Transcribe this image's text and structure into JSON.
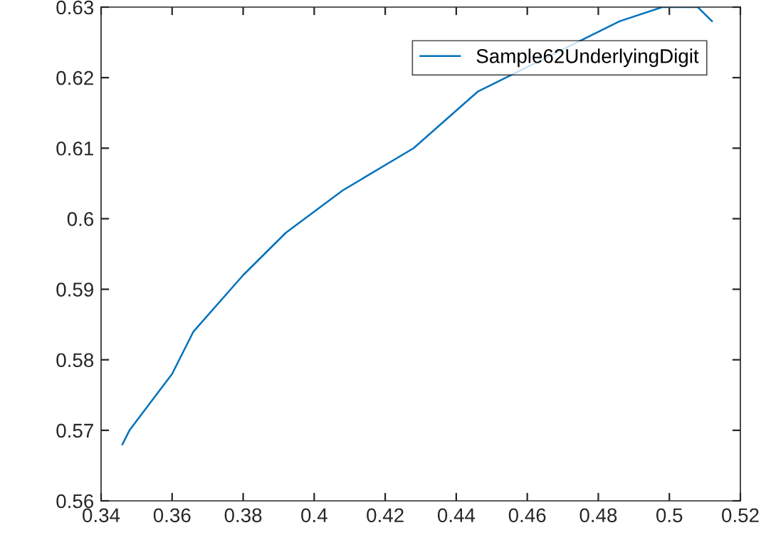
{
  "chart_data": {
    "type": "line",
    "x": [
      0.346,
      0.348,
      0.36,
      0.366,
      0.38,
      0.392,
      0.408,
      0.428,
      0.446,
      0.486,
      0.498,
      0.508,
      0.512
    ],
    "series": [
      {
        "name": "Sample62UnderlyingDigit",
        "color": "#0072bd",
        "values": [
          0.568,
          0.57,
          0.578,
          0.584,
          0.592,
          0.598,
          0.604,
          0.61,
          0.618,
          0.628,
          0.63,
          0.63,
          0.628
        ]
      }
    ],
    "xlim": [
      0.34,
      0.52
    ],
    "ylim": [
      0.56,
      0.63
    ],
    "xticks": [
      0.34,
      0.36,
      0.38,
      0.4,
      0.42,
      0.44,
      0.46,
      0.48,
      0.5,
      0.52
    ],
    "yticks": [
      0.56,
      0.57,
      0.58,
      0.59,
      0.6,
      0.61,
      0.62,
      0.63
    ],
    "grid": false,
    "legend": "top right",
    "marker": "none",
    "line_style": "solid"
  }
}
